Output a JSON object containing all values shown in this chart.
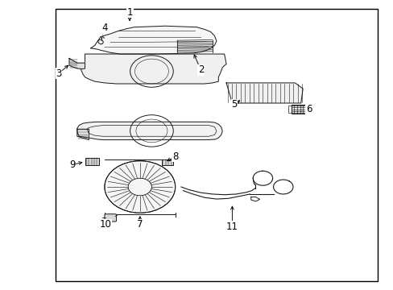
{
  "background_color": "#ffffff",
  "border_color": "#000000",
  "line_color": "#1a1a1a",
  "fig_width": 4.89,
  "fig_height": 3.6,
  "dpi": 100,
  "border": [
    0.14,
    0.03,
    0.96,
    0.97
  ]
}
